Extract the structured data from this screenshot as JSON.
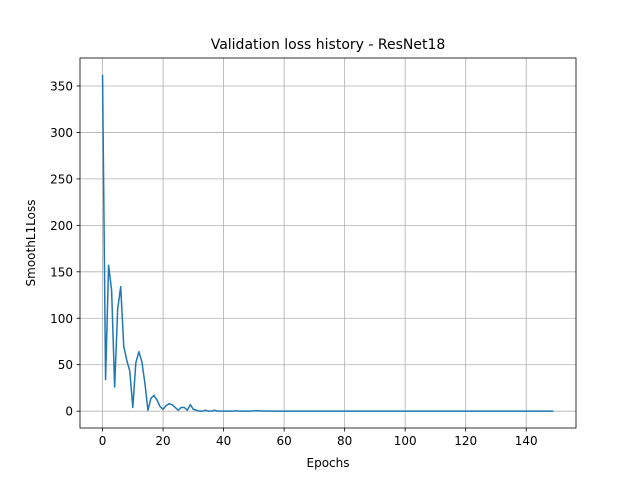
{
  "chart_data": {
    "type": "line",
    "title": "Validation loss history - ResNet18",
    "xlabel": "Epochs",
    "ylabel": "SmoothL1Loss",
    "xlim": [
      -7.45,
      156.45
    ],
    "ylim": [
      -18.1,
      380.1
    ],
    "xticks": [
      0,
      20,
      40,
      60,
      80,
      100,
      120,
      140
    ],
    "yticks": [
      0,
      50,
      100,
      150,
      200,
      250,
      300,
      350
    ],
    "grid": true,
    "series": [
      {
        "color": "#1f77b4",
        "x": [
          0,
          1,
          2,
          3,
          4,
          5,
          6,
          7,
          8,
          9,
          10,
          11,
          12,
          13,
          14,
          15,
          16,
          17,
          18,
          19,
          20,
          21,
          22,
          23,
          24,
          25,
          26,
          27,
          28,
          29,
          30,
          31,
          32,
          33,
          34,
          35,
          36,
          37,
          38,
          39,
          40,
          41,
          42,
          43,
          44,
          45,
          46,
          47,
          48,
          49,
          50,
          55,
          60,
          70,
          80,
          90,
          100,
          110,
          120,
          130,
          140,
          149
        ],
        "y": [
          362,
          34,
          157,
          130,
          26,
          110,
          134,
          70,
          55,
          43,
          4,
          52,
          64,
          53,
          30,
          1,
          14,
          17,
          12,
          5,
          2,
          6,
          8,
          7,
          4,
          1,
          4,
          4,
          1,
          7,
          2,
          1,
          0,
          0,
          1,
          0,
          0,
          1,
          0,
          0,
          0,
          0,
          0,
          0,
          0.5,
          0,
          0,
          0,
          0,
          0,
          0.5,
          0,
          0,
          0,
          0,
          0,
          0,
          0,
          0,
          0,
          0,
          0
        ]
      }
    ]
  }
}
